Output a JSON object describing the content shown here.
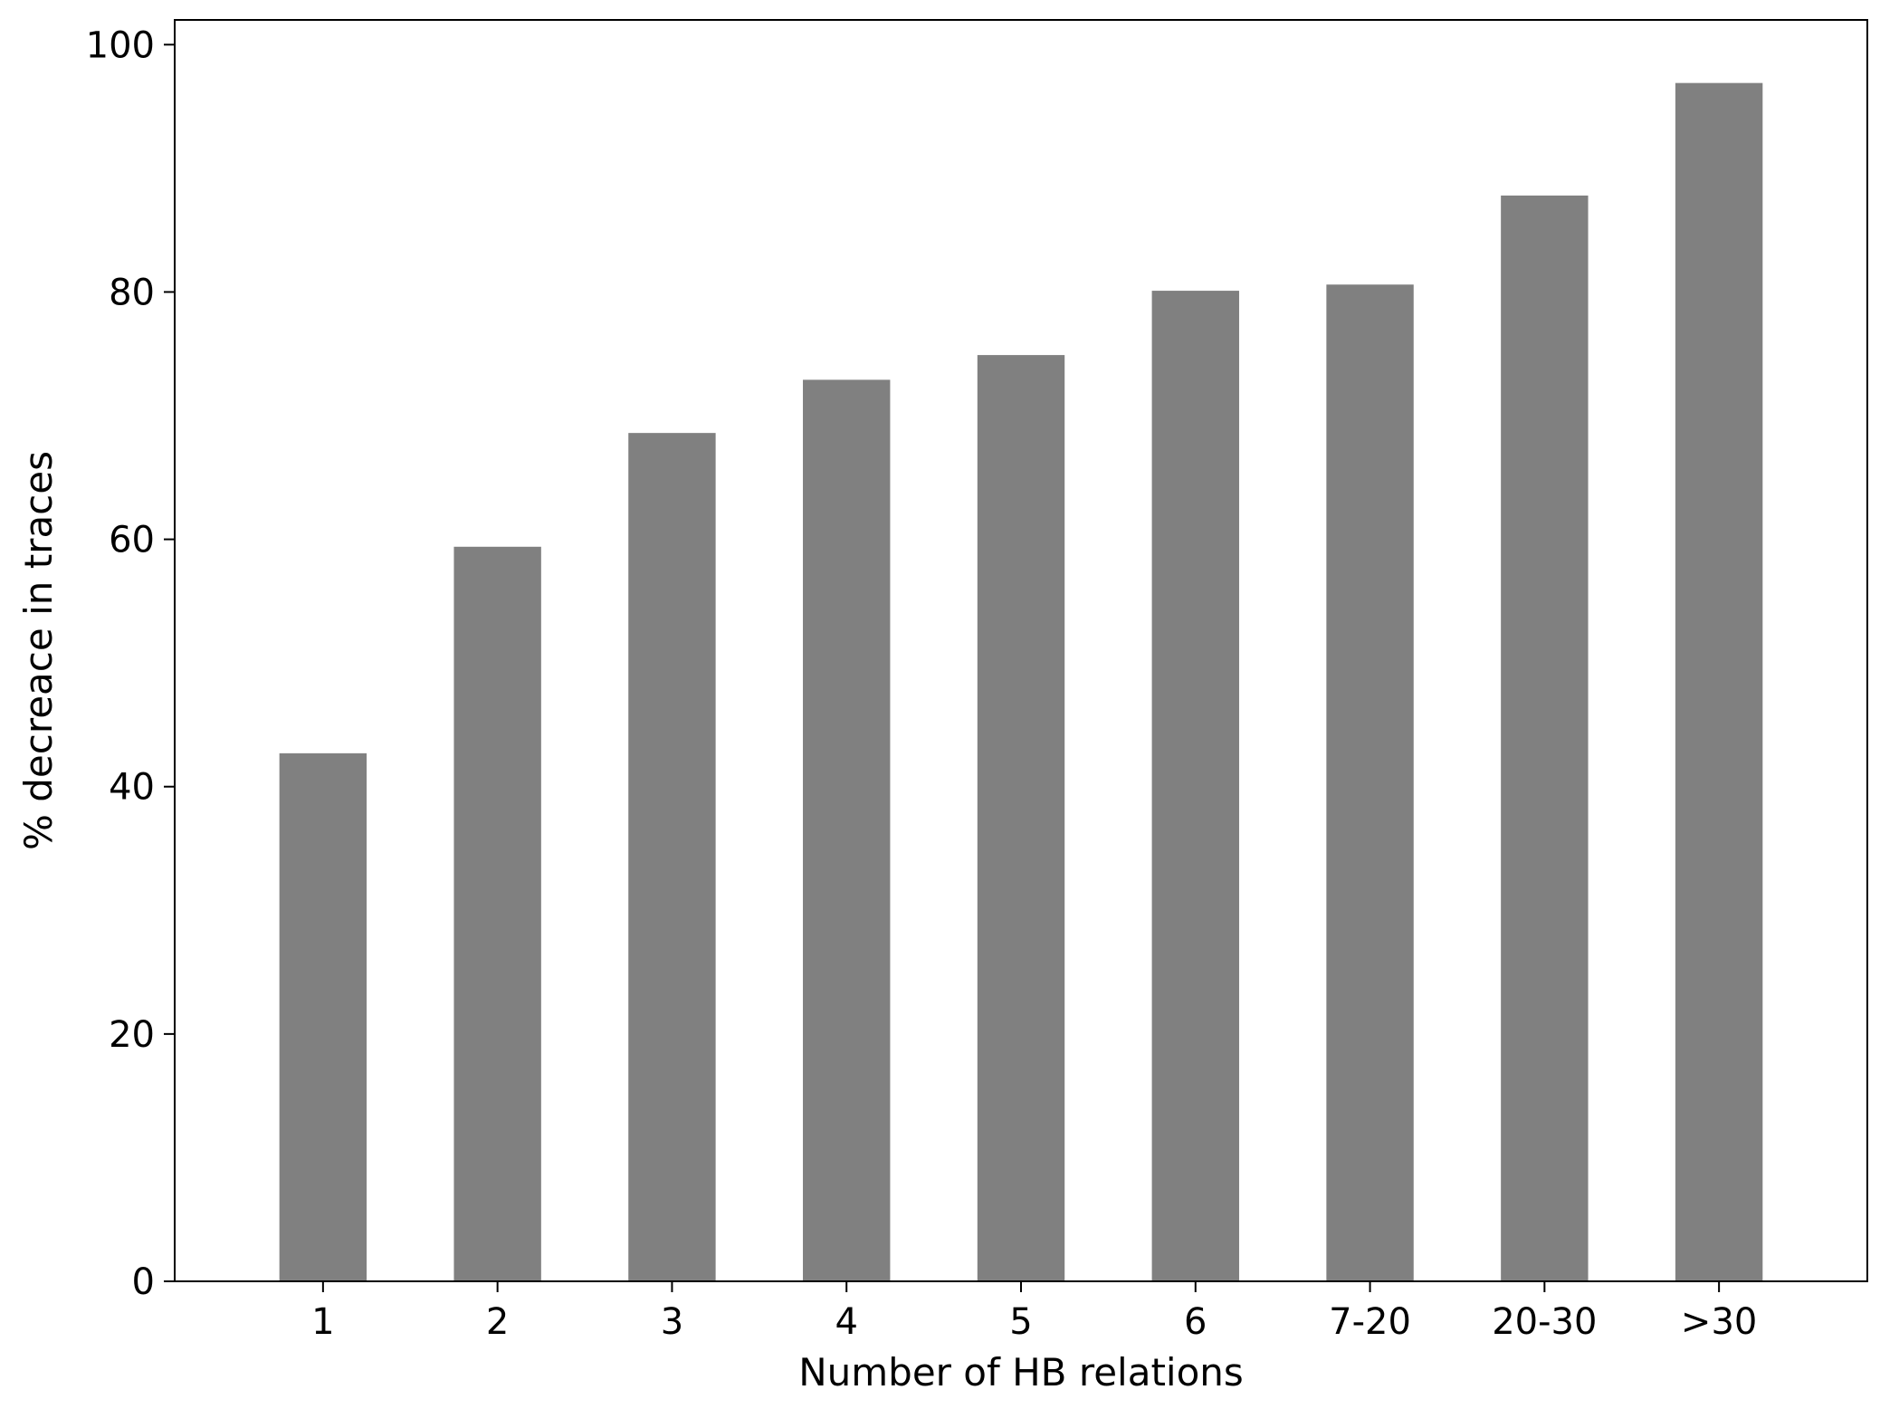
{
  "chart_data": {
    "type": "bar",
    "title": "",
    "xlabel": "Number of HB relations",
    "ylabel": "%  decreace in traces",
    "categories": [
      "1",
      "2",
      "3",
      "4",
      "5",
      "6",
      "7-20",
      "20-30",
      ">30"
    ],
    "values": [
      42.7,
      59.4,
      68.6,
      72.9,
      74.9,
      80.1,
      80.6,
      87.8,
      96.9
    ],
    "ylim": [
      0,
      102
    ],
    "yticks": [
      0,
      20,
      40,
      60,
      80,
      100
    ],
    "grid": false,
    "legend": "none",
    "bar_color": "#808080"
  }
}
